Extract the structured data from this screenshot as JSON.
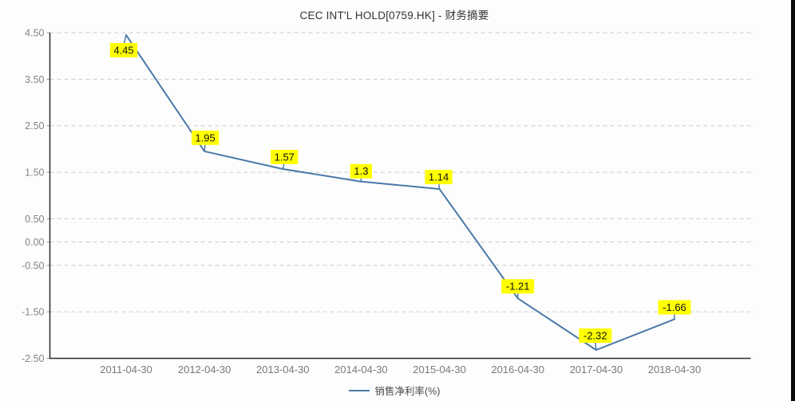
{
  "title": "CEC INT'L HOLD[0759.HK] - 财务摘要",
  "chart_data": {
    "type": "line",
    "title": "CEC INT'L HOLD[0759.HK] - 财务摘要",
    "legend": "销售净利率(%)",
    "legend_position": "bottom-center",
    "categories": [
      "2011-04-30",
      "2012-04-30",
      "2013-04-30",
      "2014-04-30",
      "2015-04-30",
      "2016-04-30",
      "2017-04-30",
      "2018-04-30"
    ],
    "series": [
      {
        "name": "销售净利率(%)",
        "values": [
          4.45,
          1.95,
          1.57,
          1.3,
          1.14,
          -1.21,
          -2.32,
          -1.66
        ]
      }
    ],
    "point_labels": [
      "4.45",
      "1.95",
      "1.57",
      "1.3",
      "1.14",
      "-1.21",
      "-2.32",
      "-1.66"
    ],
    "ylim": [
      -2.5,
      4.5
    ],
    "y_ticks": [
      4.5,
      3.5,
      2.5,
      1.5,
      0.5,
      0,
      -0.5,
      -1.5,
      -2.5
    ],
    "y_tick_labels": [
      "4.50",
      "3.50",
      "2.50",
      "1.50",
      "0.50",
      "0.00",
      "-0.50",
      "-1.50",
      "-2.50"
    ],
    "grid": "horizontal dashed",
    "colors": {
      "line": "#4b79a8",
      "label_bg": "#ffff00",
      "label_text": "#111111",
      "grid": "#cccccc",
      "axis": "#2a2a2a",
      "tick_text": "#848484",
      "x_tick_text": "#7a7a7a",
      "title_text": "#333333"
    }
  }
}
